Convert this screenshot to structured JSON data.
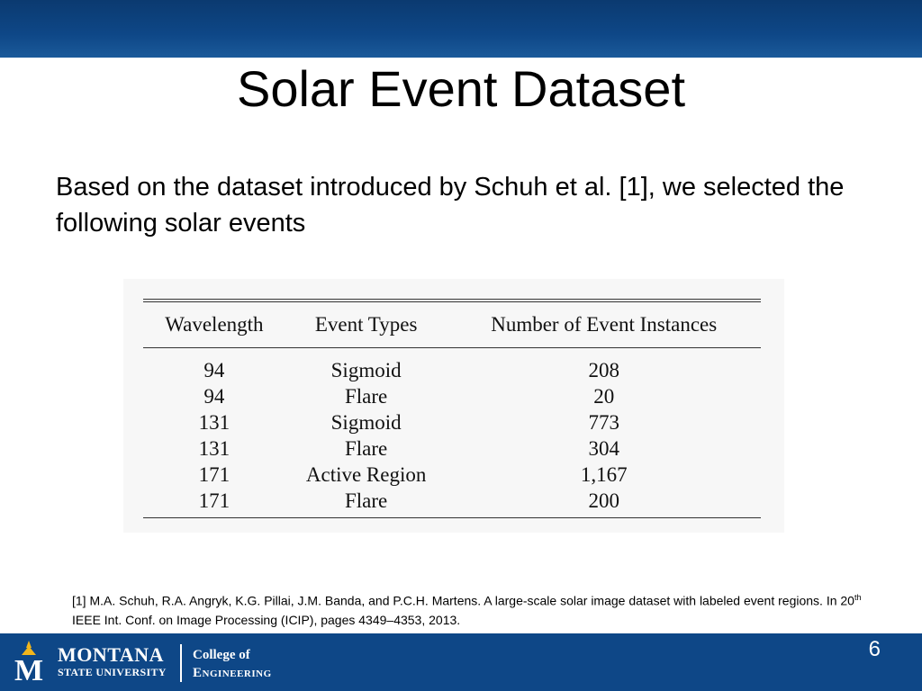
{
  "slide": {
    "title": "Solar Event Dataset",
    "intro": "Based on the dataset introduced by Schuh et al. [1], we selected the following solar events",
    "page_number": "6"
  },
  "table": {
    "headers": [
      "Wavelength",
      "Event Types",
      "Number of Event Instances"
    ],
    "rows": [
      [
        "94",
        "Sigmoid",
        "208"
      ],
      [
        "94",
        "Flare",
        "20"
      ],
      [
        "131",
        "Sigmoid",
        "773"
      ],
      [
        "131",
        "Flare",
        "304"
      ],
      [
        "171",
        "Active Region",
        "1,167"
      ],
      [
        "171",
        "Flare",
        "200"
      ]
    ]
  },
  "footnote": {
    "part1": "[1] M.A. Schuh, R.A. Angryk, K.G. Pillai, J.M. Banda, and P.C.H. Martens. A large-scale solar image dataset with labeled event regions. In 20",
    "sup": "th",
    "part2": " IEEE Int. Conf. on Image Processing (ICIP), pages 4349–4353, 2013."
  },
  "branding": {
    "university_line1": "MONTANA",
    "university_line2": "STATE UNIVERSITY",
    "college_line1": "College of",
    "college_line2": "Engineering",
    "logo_letter": "M"
  },
  "colors": {
    "bar": "#0e4787",
    "logo_gold": "#f2b61c"
  }
}
